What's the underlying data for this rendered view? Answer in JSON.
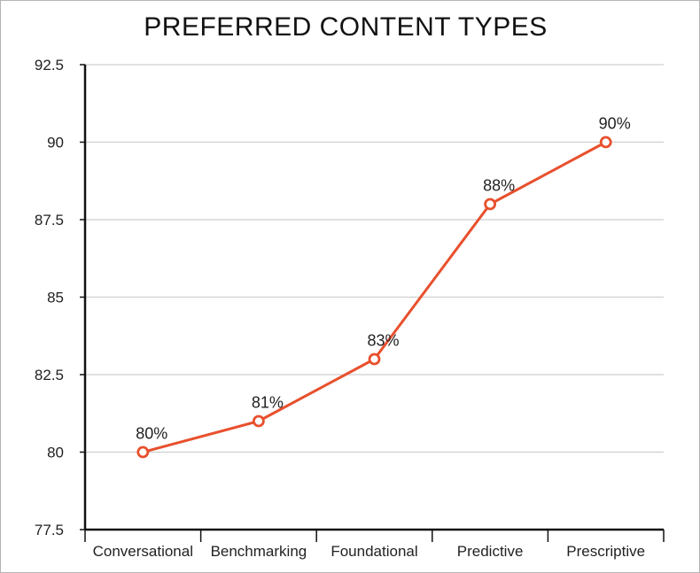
{
  "chart_data": {
    "type": "line",
    "title": "PREFERRED CONTENT TYPES",
    "xlabel": "",
    "ylabel": "",
    "categories": [
      "Conversational",
      "Benchmarking",
      "Foundational",
      "Predictive",
      "Prescriptive"
    ],
    "series": [
      {
        "values": [
          80,
          81,
          83,
          88,
          90
        ]
      }
    ],
    "data_labels": [
      "80%",
      "81%",
      "83%",
      "88%",
      "90%"
    ],
    "ylim": [
      77.5,
      92.5
    ],
    "yticks": [
      "77.5",
      "80",
      "82.5",
      "85",
      "87.5",
      "90",
      "92.5"
    ],
    "grid": true,
    "legend": "none",
    "colors": {
      "line": "#e8502d",
      "grid": "#cfcfcf",
      "axis": "#111111"
    }
  }
}
